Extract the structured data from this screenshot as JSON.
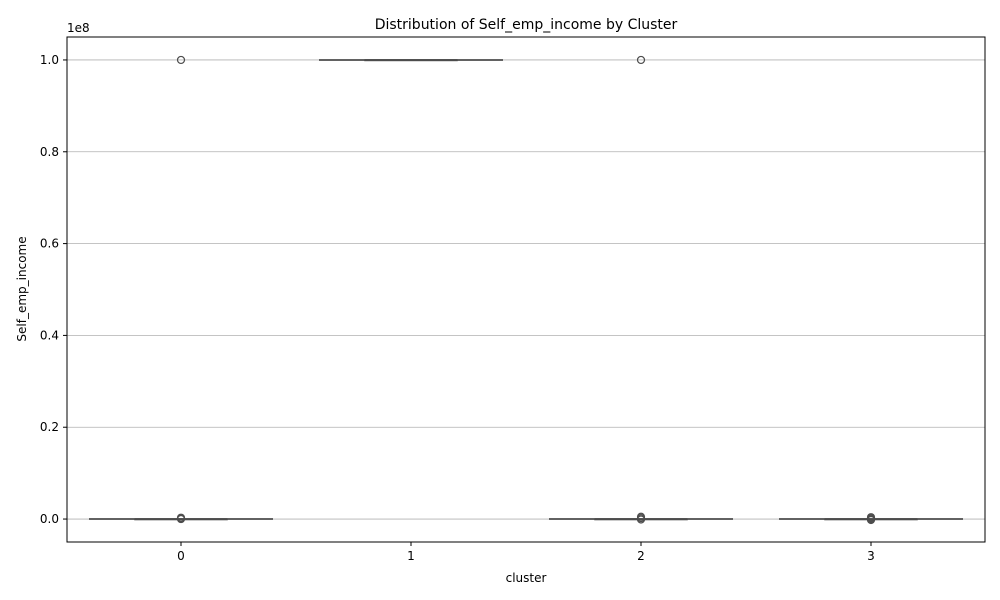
{
  "chart_data": {
    "type": "boxplot",
    "title": "Distribution of Self_emp_income by Cluster",
    "xlabel": "cluster",
    "ylabel": "Self_emp_income",
    "offset_label": "1e8",
    "categories": [
      "0",
      "1",
      "2",
      "3"
    ],
    "ylim": [
      -5000000,
      105000000
    ],
    "y_ticks": [
      0,
      20000000,
      40000000,
      60000000,
      80000000,
      100000000
    ],
    "y_tick_labels": [
      "0.0",
      "0.2",
      "0.4",
      "0.6",
      "0.8",
      "1.0"
    ],
    "grid": "horizontal",
    "boxes": [
      {
        "category": "0",
        "whisker_low": 0,
        "q1": 0,
        "median": 0,
        "q3": 0,
        "whisker_high": 0,
        "outliers": [
          0,
          100000,
          300000,
          100000000
        ]
      },
      {
        "category": "1",
        "whisker_low": 100000000,
        "q1": 100000000,
        "median": 100000000,
        "q3": 100000000,
        "whisker_high": 100000000,
        "outliers": []
      },
      {
        "category": "2",
        "whisker_low": 0,
        "q1": 0,
        "median": 0,
        "q3": 0,
        "whisker_high": 0,
        "outliers": [
          -100000,
          200000,
          500000,
          100000000
        ]
      },
      {
        "category": "3",
        "whisker_low": 0,
        "q1": 0,
        "median": 0,
        "q3": 0,
        "whisker_high": 0,
        "outliers": [
          -200000,
          0,
          200000,
          400000
        ]
      }
    ],
    "colors": {
      "box_line": "#4d4d4d",
      "grid": "#b0b0b0",
      "axis": "#000000"
    }
  }
}
